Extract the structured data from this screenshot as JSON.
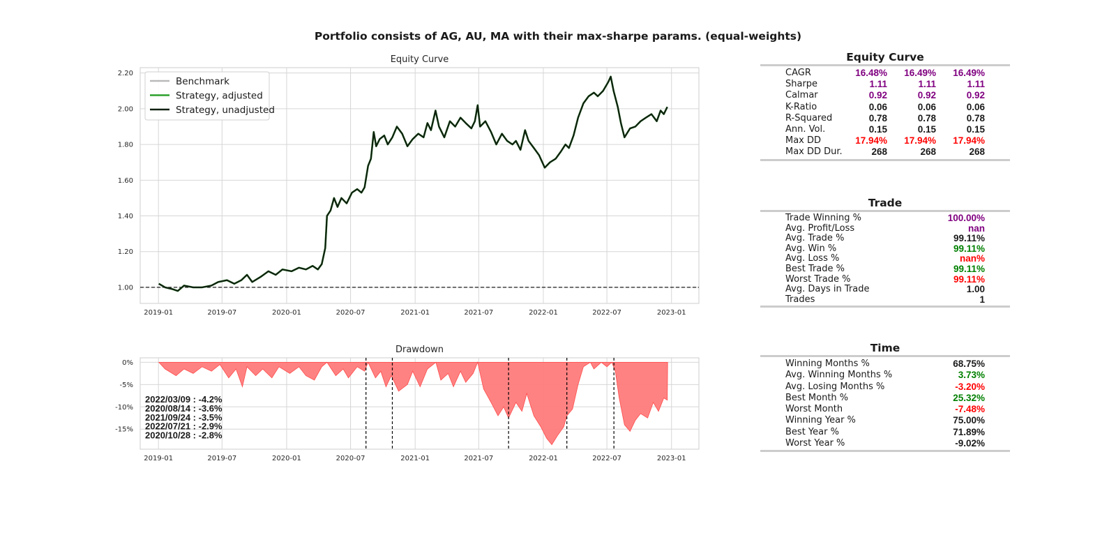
{
  "suptitle": "Portfolio consists of AG, AU, MA with their max-sharpe params. (equal-weights)",
  "colors": {
    "benchmark": "#b9b9b9",
    "strategy_adjusted": "#2ca02c",
    "strategy_unadjusted": "#102010",
    "drawdown_fill": "#ff7b7b",
    "drawdown_edge": "#ff4a4a",
    "purple": "#800080",
    "green": "#008000",
    "red": "#ff0000",
    "black": "#1a1a1a",
    "grid": "#d6d6d6"
  },
  "chart_data": [
    {
      "type": "line",
      "title": "Equity Curve",
      "xlabel": "",
      "ylabel": "",
      "x_range": [
        "2018-11-10",
        "2023-03-20"
      ],
      "ylim": [
        0.91,
        2.23
      ],
      "x_ticks": [
        "2019-01",
        "2019-07",
        "2020-01",
        "2020-07",
        "2021-01",
        "2021-07",
        "2022-01",
        "2022-07",
        "2023-01"
      ],
      "y_ticks": [
        "1.00",
        "1.20",
        "1.40",
        "1.60",
        "1.80",
        "2.00",
        "2.20"
      ],
      "reference_line": 1.0,
      "grid": true,
      "legend_position": "top-left",
      "legend": [
        "Benchmark",
        "Strategy, adjusted",
        "Strategy, unadjusted"
      ],
      "series": [
        {
          "name": "Strategy, unadjusted",
          "points": [
            [
              "2019-01-02",
              1.02
            ],
            [
              "2019-01-20",
              1.0
            ],
            [
              "2019-02-10",
              0.99
            ],
            [
              "2019-02-25",
              0.98
            ],
            [
              "2019-03-15",
              1.01
            ],
            [
              "2019-04-10",
              1.0
            ],
            [
              "2019-05-05",
              1.0
            ],
            [
              "2019-06-01",
              1.01
            ],
            [
              "2019-06-20",
              1.03
            ],
            [
              "2019-07-15",
              1.04
            ],
            [
              "2019-08-05",
              1.02
            ],
            [
              "2019-08-25",
              1.04
            ],
            [
              "2019-09-10",
              1.07
            ],
            [
              "2019-09-25",
              1.03
            ],
            [
              "2019-10-20",
              1.06
            ],
            [
              "2019-11-10",
              1.09
            ],
            [
              "2019-12-01",
              1.07
            ],
            [
              "2019-12-20",
              1.1
            ],
            [
              "2020-01-15",
              1.09
            ],
            [
              "2020-02-05",
              1.11
            ],
            [
              "2020-02-25",
              1.1
            ],
            [
              "2020-03-15",
              1.12
            ],
            [
              "2020-03-30",
              1.1
            ],
            [
              "2020-04-10",
              1.13
            ],
            [
              "2020-04-20",
              1.22
            ],
            [
              "2020-04-25",
              1.4
            ],
            [
              "2020-05-05",
              1.43
            ],
            [
              "2020-05-15",
              1.5
            ],
            [
              "2020-05-25",
              1.45
            ],
            [
              "2020-06-05",
              1.5
            ],
            [
              "2020-06-20",
              1.47
            ],
            [
              "2020-07-05",
              1.53
            ],
            [
              "2020-07-20",
              1.55
            ],
            [
              "2020-08-01",
              1.53
            ],
            [
              "2020-08-10",
              1.56
            ],
            [
              "2020-08-20",
              1.68
            ],
            [
              "2020-08-28",
              1.72
            ],
            [
              "2020-09-05",
              1.87
            ],
            [
              "2020-09-12",
              1.79
            ],
            [
              "2020-09-22",
              1.83
            ],
            [
              "2020-10-05",
              1.85
            ],
            [
              "2020-10-15",
              1.8
            ],
            [
              "2020-10-28",
              1.84
            ],
            [
              "2020-11-10",
              1.9
            ],
            [
              "2020-11-25",
              1.86
            ],
            [
              "2020-12-10",
              1.79
            ],
            [
              "2020-12-25",
              1.83
            ],
            [
              "2021-01-10",
              1.86
            ],
            [
              "2021-01-25",
              1.84
            ],
            [
              "2021-02-05",
              1.92
            ],
            [
              "2021-02-15",
              1.88
            ],
            [
              "2021-02-28",
              1.99
            ],
            [
              "2021-03-10",
              1.9
            ],
            [
              "2021-03-25",
              1.84
            ],
            [
              "2021-04-10",
              1.93
            ],
            [
              "2021-04-25",
              1.9
            ],
            [
              "2021-05-10",
              1.95
            ],
            [
              "2021-05-25",
              1.92
            ],
            [
              "2021-06-10",
              1.89
            ],
            [
              "2021-06-20",
              1.93
            ],
            [
              "2021-06-28",
              2.02
            ],
            [
              "2021-07-05",
              1.9
            ],
            [
              "2021-07-20",
              1.93
            ],
            [
              "2021-08-05",
              1.87
            ],
            [
              "2021-08-20",
              1.8
            ],
            [
              "2021-09-05",
              1.86
            ],
            [
              "2021-09-20",
              1.82
            ],
            [
              "2021-10-05",
              1.8
            ],
            [
              "2021-10-15",
              1.82
            ],
            [
              "2021-10-28",
              1.77
            ],
            [
              "2021-11-10",
              1.88
            ],
            [
              "2021-11-20",
              1.82
            ],
            [
              "2021-12-05",
              1.78
            ],
            [
              "2021-12-20",
              1.74
            ],
            [
              "2022-01-05",
              1.67
            ],
            [
              "2022-01-20",
              1.7
            ],
            [
              "2022-02-05",
              1.72
            ],
            [
              "2022-02-20",
              1.76
            ],
            [
              "2022-03-05",
              1.8
            ],
            [
              "2022-03-15",
              1.78
            ],
            [
              "2022-03-28",
              1.85
            ],
            [
              "2022-04-10",
              1.95
            ],
            [
              "2022-04-25",
              2.03
            ],
            [
              "2022-05-10",
              2.07
            ],
            [
              "2022-05-25",
              2.09
            ],
            [
              "2022-06-05",
              2.07
            ],
            [
              "2022-06-20",
              2.1
            ],
            [
              "2022-07-05",
              2.15
            ],
            [
              "2022-07-12",
              2.18
            ],
            [
              "2022-07-20",
              2.1
            ],
            [
              "2022-08-01",
              2.01
            ],
            [
              "2022-08-10",
              1.92
            ],
            [
              "2022-08-20",
              1.84
            ],
            [
              "2022-09-05",
              1.89
            ],
            [
              "2022-09-20",
              1.9
            ],
            [
              "2022-10-05",
              1.93
            ],
            [
              "2022-10-20",
              1.95
            ],
            [
              "2022-11-05",
              1.97
            ],
            [
              "2022-11-20",
              1.93
            ],
            [
              "2022-12-01",
              1.99
            ],
            [
              "2022-12-10",
              1.97
            ],
            [
              "2022-12-20",
              2.01
            ]
          ]
        },
        {
          "name": "Strategy, adjusted",
          "same_as": "Strategy, unadjusted"
        }
      ]
    },
    {
      "type": "area",
      "title": "Drawdown",
      "xlabel": "",
      "ylabel": "",
      "x_range": [
        "2018-11-10",
        "2023-03-20"
      ],
      "ylim": [
        -19.5,
        1.0
      ],
      "x_ticks": [
        "2019-01",
        "2019-07",
        "2020-01",
        "2020-07",
        "2021-01",
        "2021-07",
        "2022-01",
        "2022-07",
        "2023-01"
      ],
      "y_ticks": [
        "0%",
        "-5%",
        "-10%",
        "-15%"
      ],
      "grid": true,
      "series": [
        {
          "name": "Drawdown %",
          "points": [
            [
              "2019-01-02",
              0
            ],
            [
              "2019-01-20",
              -1.5
            ],
            [
              "2019-02-20",
              -3.0
            ],
            [
              "2019-03-15",
              -1.5
            ],
            [
              "2019-04-10",
              -2.5
            ],
            [
              "2019-05-05",
              -1.0
            ],
            [
              "2019-06-01",
              -2.0
            ],
            [
              "2019-06-25",
              -0.5
            ],
            [
              "2019-07-20",
              -3.5
            ],
            [
              "2019-08-10",
              -1.5
            ],
            [
              "2019-08-28",
              -5.5
            ],
            [
              "2019-09-10",
              -1.0
            ],
            [
              "2019-10-05",
              -3.0
            ],
            [
              "2019-10-25",
              -1.5
            ],
            [
              "2019-11-20",
              -3.5
            ],
            [
              "2019-12-10",
              -1.0
            ],
            [
              "2020-01-10",
              -2.5
            ],
            [
              "2020-02-05",
              -1.0
            ],
            [
              "2020-02-25",
              -3.0
            ],
            [
              "2020-03-20",
              -4.0
            ],
            [
              "2020-04-10",
              -1.0
            ],
            [
              "2020-04-25",
              0
            ],
            [
              "2020-05-20",
              -3.0
            ],
            [
              "2020-06-10",
              -1.5
            ],
            [
              "2020-06-25",
              -3.5
            ],
            [
              "2020-07-20",
              -1.0
            ],
            [
              "2020-08-10",
              -2.0
            ],
            [
              "2020-08-20",
              0
            ],
            [
              "2020-09-10",
              -3.5
            ],
            [
              "2020-09-25",
              -2.0
            ],
            [
              "2020-10-10",
              -5.5
            ],
            [
              "2020-10-25",
              -3.0
            ],
            [
              "2020-11-15",
              -6.5
            ],
            [
              "2020-12-10",
              -5.0
            ],
            [
              "2020-12-25",
              -2.0
            ],
            [
              "2021-01-15",
              -5.5
            ],
            [
              "2021-02-05",
              -1.5
            ],
            [
              "2021-03-01",
              0
            ],
            [
              "2021-03-15",
              -4.0
            ],
            [
              "2021-04-05",
              -2.5
            ],
            [
              "2021-04-20",
              -5.5
            ],
            [
              "2021-05-10",
              -2.0
            ],
            [
              "2021-05-25",
              -4.5
            ],
            [
              "2021-06-15",
              -2.5
            ],
            [
              "2021-06-28",
              0
            ],
            [
              "2021-07-15",
              -6.0
            ],
            [
              "2021-08-05",
              -9.0
            ],
            [
              "2021-08-25",
              -12.0
            ],
            [
              "2021-09-10",
              -10.0
            ],
            [
              "2021-09-24",
              -12.5
            ],
            [
              "2021-10-15",
              -9.0
            ],
            [
              "2021-11-01",
              -11.0
            ],
            [
              "2021-11-15",
              -7.0
            ],
            [
              "2021-12-05",
              -12.0
            ],
            [
              "2021-12-25",
              -14.5
            ],
            [
              "2022-01-10",
              -17.0
            ],
            [
              "2022-01-25",
              -18.5
            ],
            [
              "2022-02-10",
              -16.5
            ],
            [
              "2022-02-28",
              -14.5
            ],
            [
              "2022-03-09",
              -12.0
            ],
            [
              "2022-03-25",
              -10.5
            ],
            [
              "2022-04-10",
              -5.0
            ],
            [
              "2022-04-25",
              -1.0
            ],
            [
              "2022-05-15",
              0
            ],
            [
              "2022-05-25",
              -1.5
            ],
            [
              "2022-06-15",
              0
            ],
            [
              "2022-07-01",
              -1.0
            ],
            [
              "2022-07-15",
              0
            ],
            [
              "2022-07-25",
              -2.0
            ],
            [
              "2022-08-05",
              -8.0
            ],
            [
              "2022-08-20",
              -14.0
            ],
            [
              "2022-09-05",
              -15.5
            ],
            [
              "2022-09-20",
              -13.0
            ],
            [
              "2022-10-05",
              -11.5
            ],
            [
              "2022-10-25",
              -12.5
            ],
            [
              "2022-11-10",
              -9.0
            ],
            [
              "2022-11-25",
              -11.0
            ],
            [
              "2022-12-10",
              -8.0
            ],
            [
              "2022-12-20",
              -8.5
            ],
            [
              "2022-12-21",
              0
            ]
          ]
        }
      ],
      "drawdown_period_markers": [
        "2020-08-14",
        "2020-10-28",
        "2021-09-24",
        "2022-03-09",
        "2022-07-21"
      ],
      "annotations": [
        "2022/03/09 : -4.2%",
        "2020/08/14 : -3.6%",
        "2021/09/24 : -3.5%",
        "2022/07/21 : -2.9%",
        "2020/10/28 : -2.8%"
      ]
    }
  ],
  "tables": {
    "equity": {
      "title": "Equity Curve",
      "rows": [
        {
          "label": "CAGR",
          "values": [
            "16.48%",
            "16.49%",
            "16.49%"
          ],
          "color": "purple"
        },
        {
          "label": "Sharpe",
          "values": [
            "1.11",
            "1.11",
            "1.11"
          ],
          "color": "purple"
        },
        {
          "label": "Calmar",
          "values": [
            "0.92",
            "0.92",
            "0.92"
          ],
          "color": "purple"
        },
        {
          "label": "K-Ratio",
          "values": [
            "0.06",
            "0.06",
            "0.06"
          ],
          "color": "black"
        },
        {
          "label": "R-Squared",
          "values": [
            "0.78",
            "0.78",
            "0.78"
          ],
          "color": "black"
        },
        {
          "label": "Ann. Vol.",
          "values": [
            "0.15",
            "0.15",
            "0.15"
          ],
          "color": "black"
        },
        {
          "label": "Max DD",
          "values": [
            "17.94%",
            "17.94%",
            "17.94%"
          ],
          "color": "red"
        },
        {
          "label": "Max DD Dur.",
          "values": [
            "268",
            "268",
            "268"
          ],
          "color": "black"
        }
      ]
    },
    "trade": {
      "title": "Trade",
      "rows": [
        {
          "label": "Trade Winning %",
          "value": "100.00%",
          "color": "purple"
        },
        {
          "label": "Avg. Profit/Loss",
          "value": "nan",
          "color": "purple"
        },
        {
          "label": "Avg. Trade %",
          "value": "99.11%",
          "color": "black"
        },
        {
          "label": "Avg. Win %",
          "value": "99.11%",
          "color": "green"
        },
        {
          "label": "Avg. Loss %",
          "value": "nan%",
          "color": "red"
        },
        {
          "label": "Best Trade %",
          "value": "99.11%",
          "color": "green"
        },
        {
          "label": "Worst Trade %",
          "value": "99.11%",
          "color": "red"
        },
        {
          "label": "Avg. Days in Trade",
          "value": "1.00",
          "color": "black"
        },
        {
          "label": "Trades",
          "value": "1",
          "color": "black"
        }
      ]
    },
    "time": {
      "title": "Time",
      "rows": [
        {
          "label": "Winning Months %",
          "value": "68.75%",
          "color": "black"
        },
        {
          "label": "Avg. Winning Months %",
          "value": "3.73%",
          "color": "green"
        },
        {
          "label": "Avg. Losing Months %",
          "value": "-3.20%",
          "color": "red"
        },
        {
          "label": "Best Month %",
          "value": "25.32%",
          "color": "green"
        },
        {
          "label": "Worst Month",
          "value": "-7.48%",
          "color": "red"
        },
        {
          "label": "Winning Year %",
          "value": "75.00%",
          "color": "black"
        },
        {
          "label": "Best Year %",
          "value": "71.89%",
          "color": "black"
        },
        {
          "label": "Worst Year %",
          "value": "-9.02%",
          "color": "black"
        }
      ]
    }
  }
}
